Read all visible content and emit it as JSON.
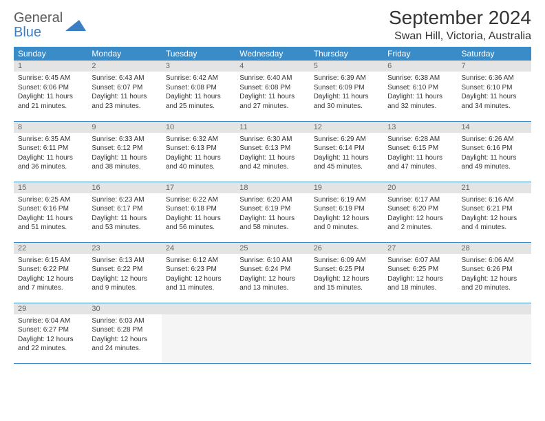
{
  "logo": {
    "general": "General",
    "blue": "Blue"
  },
  "title": "September 2024",
  "location": "Swan Hill, Victoria, Australia",
  "colors": {
    "header_bg": "#3a8cc9",
    "header_fg": "#ffffff",
    "daynum_bg": "#e4e4e4",
    "border": "#3a8cc9",
    "logo_blue": "#3a7fc4",
    "logo_gray": "#5a5a5a"
  },
  "day_headers": [
    "Sunday",
    "Monday",
    "Tuesday",
    "Wednesday",
    "Thursday",
    "Friday",
    "Saturday"
  ],
  "weeks": [
    [
      {
        "n": "1",
        "sr": "6:45 AM",
        "ss": "6:06 PM",
        "dl": "11 hours and 21 minutes."
      },
      {
        "n": "2",
        "sr": "6:43 AM",
        "ss": "6:07 PM",
        "dl": "11 hours and 23 minutes."
      },
      {
        "n": "3",
        "sr": "6:42 AM",
        "ss": "6:08 PM",
        "dl": "11 hours and 25 minutes."
      },
      {
        "n": "4",
        "sr": "6:40 AM",
        "ss": "6:08 PM",
        "dl": "11 hours and 27 minutes."
      },
      {
        "n": "5",
        "sr": "6:39 AM",
        "ss": "6:09 PM",
        "dl": "11 hours and 30 minutes."
      },
      {
        "n": "6",
        "sr": "6:38 AM",
        "ss": "6:10 PM",
        "dl": "11 hours and 32 minutes."
      },
      {
        "n": "7",
        "sr": "6:36 AM",
        "ss": "6:10 PM",
        "dl": "11 hours and 34 minutes."
      }
    ],
    [
      {
        "n": "8",
        "sr": "6:35 AM",
        "ss": "6:11 PM",
        "dl": "11 hours and 36 minutes."
      },
      {
        "n": "9",
        "sr": "6:33 AM",
        "ss": "6:12 PM",
        "dl": "11 hours and 38 minutes."
      },
      {
        "n": "10",
        "sr": "6:32 AM",
        "ss": "6:13 PM",
        "dl": "11 hours and 40 minutes."
      },
      {
        "n": "11",
        "sr": "6:30 AM",
        "ss": "6:13 PM",
        "dl": "11 hours and 42 minutes."
      },
      {
        "n": "12",
        "sr": "6:29 AM",
        "ss": "6:14 PM",
        "dl": "11 hours and 45 minutes."
      },
      {
        "n": "13",
        "sr": "6:28 AM",
        "ss": "6:15 PM",
        "dl": "11 hours and 47 minutes."
      },
      {
        "n": "14",
        "sr": "6:26 AM",
        "ss": "6:16 PM",
        "dl": "11 hours and 49 minutes."
      }
    ],
    [
      {
        "n": "15",
        "sr": "6:25 AM",
        "ss": "6:16 PM",
        "dl": "11 hours and 51 minutes."
      },
      {
        "n": "16",
        "sr": "6:23 AM",
        "ss": "6:17 PM",
        "dl": "11 hours and 53 minutes."
      },
      {
        "n": "17",
        "sr": "6:22 AM",
        "ss": "6:18 PM",
        "dl": "11 hours and 56 minutes."
      },
      {
        "n": "18",
        "sr": "6:20 AM",
        "ss": "6:19 PM",
        "dl": "11 hours and 58 minutes."
      },
      {
        "n": "19",
        "sr": "6:19 AM",
        "ss": "6:19 PM",
        "dl": "12 hours and 0 minutes."
      },
      {
        "n": "20",
        "sr": "6:17 AM",
        "ss": "6:20 PM",
        "dl": "12 hours and 2 minutes."
      },
      {
        "n": "21",
        "sr": "6:16 AM",
        "ss": "6:21 PM",
        "dl": "12 hours and 4 minutes."
      }
    ],
    [
      {
        "n": "22",
        "sr": "6:15 AM",
        "ss": "6:22 PM",
        "dl": "12 hours and 7 minutes."
      },
      {
        "n": "23",
        "sr": "6:13 AM",
        "ss": "6:22 PM",
        "dl": "12 hours and 9 minutes."
      },
      {
        "n": "24",
        "sr": "6:12 AM",
        "ss": "6:23 PM",
        "dl": "12 hours and 11 minutes."
      },
      {
        "n": "25",
        "sr": "6:10 AM",
        "ss": "6:24 PM",
        "dl": "12 hours and 13 minutes."
      },
      {
        "n": "26",
        "sr": "6:09 AM",
        "ss": "6:25 PM",
        "dl": "12 hours and 15 minutes."
      },
      {
        "n": "27",
        "sr": "6:07 AM",
        "ss": "6:25 PM",
        "dl": "12 hours and 18 minutes."
      },
      {
        "n": "28",
        "sr": "6:06 AM",
        "ss": "6:26 PM",
        "dl": "12 hours and 20 minutes."
      }
    ],
    [
      {
        "n": "29",
        "sr": "6:04 AM",
        "ss": "6:27 PM",
        "dl": "12 hours and 22 minutes."
      },
      {
        "n": "30",
        "sr": "6:03 AM",
        "ss": "6:28 PM",
        "dl": "12 hours and 24 minutes."
      },
      null,
      null,
      null,
      null,
      null
    ]
  ],
  "labels": {
    "sunrise": "Sunrise: ",
    "sunset": "Sunset: ",
    "daylight": "Daylight: "
  }
}
